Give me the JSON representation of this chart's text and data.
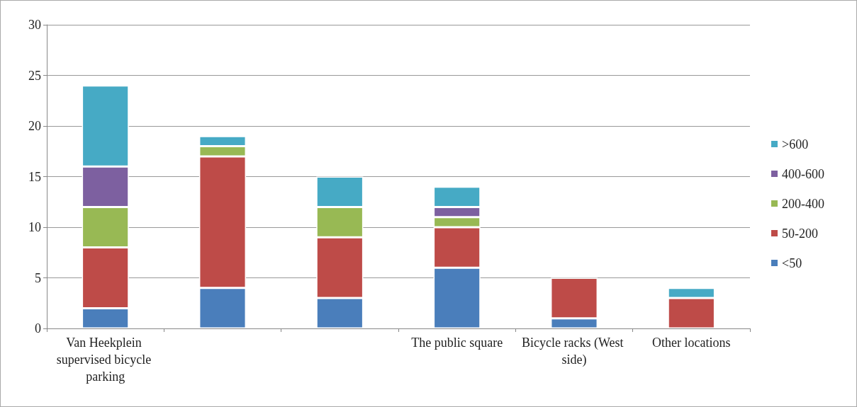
{
  "chart_data": {
    "type": "bar",
    "stacked": true,
    "categories": [
      "Van Heekplein supervised bicycle parking",
      null,
      null,
      "The public square",
      "Bicycle racks (West side)",
      "Other locations"
    ],
    "series": [
      {
        "name": "<50",
        "color": "#4a7ebb",
        "values": [
          2,
          4,
          3,
          6,
          1,
          null
        ]
      },
      {
        "name": "50-200",
        "color": "#be4b48",
        "values": [
          6,
          13,
          6,
          4,
          4,
          3
        ]
      },
      {
        "name": "200-400",
        "color": "#98b954",
        "values": [
          4,
          1,
          3,
          1,
          null,
          null
        ]
      },
      {
        "name": "400-600",
        "color": "#7d60a0",
        "values": [
          4,
          null,
          null,
          1,
          null,
          null
        ]
      },
      {
        "name": ">600",
        "color": "#46aac5",
        "values": [
          8,
          1,
          3,
          2,
          null,
          1
        ]
      }
    ],
    "ylim": [
      0,
      30
    ],
    "yticks": [
      0,
      5,
      10,
      15,
      20,
      25,
      30
    ],
    "grid": "y",
    "legend": "right"
  }
}
